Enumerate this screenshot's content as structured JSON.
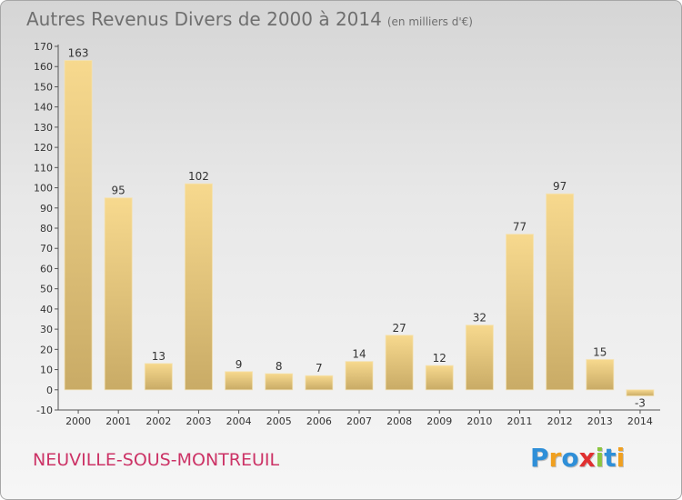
{
  "chart_data": {
    "type": "bar",
    "title": "Autres Revenus Divers de 2000 à 2014",
    "subtitle": "(en milliers d'€)",
    "categories": [
      "2000",
      "2001",
      "2002",
      "2003",
      "2004",
      "2005",
      "2006",
      "2007",
      "2008",
      "2009",
      "2010",
      "2011",
      "2012",
      "2013",
      "2014"
    ],
    "values": [
      163,
      95,
      13,
      102,
      9,
      8,
      7,
      14,
      27,
      12,
      32,
      77,
      97,
      15,
      -3
    ],
    "xlabel": "",
    "ylabel": "",
    "ylim": [
      -10,
      170
    ],
    "yticks": [
      -10,
      0,
      10,
      20,
      30,
      40,
      50,
      60,
      70,
      80,
      90,
      100,
      110,
      120,
      130,
      140,
      150,
      160,
      170
    ],
    "grid": false,
    "bar_color": "#e8c87a",
    "data_labels": true
  },
  "footer": {
    "commune": "NEUVILLE-SOUS-MONTREUIL",
    "brand_letters": [
      {
        "ch": "P",
        "color": "#2f8fd8"
      },
      {
        "ch": "r",
        "color": "#f0a020"
      },
      {
        "ch": "o",
        "color": "#2f8fd8"
      },
      {
        "ch": "x",
        "color": "#e03030"
      },
      {
        "ch": "i",
        "color": "#8cc63f"
      },
      {
        "ch": "t",
        "color": "#2f8fd8"
      },
      {
        "ch": "i",
        "color": "#f0a020"
      }
    ]
  }
}
